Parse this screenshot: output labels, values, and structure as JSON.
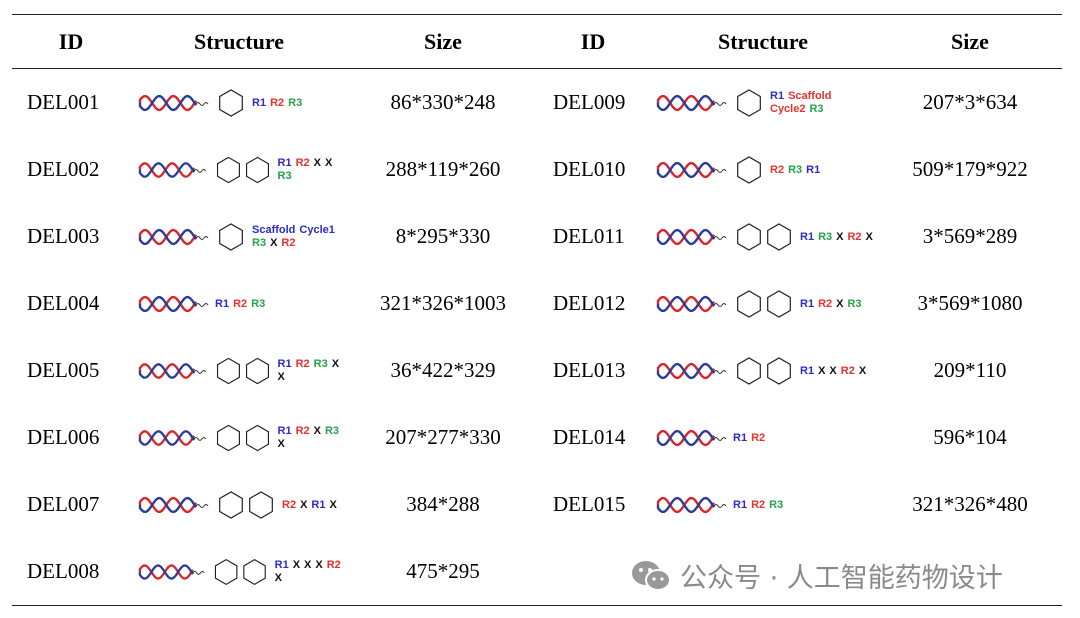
{
  "table": {
    "headers": [
      "ID",
      "Structure",
      "Size",
      "ID",
      "Structure",
      "Size"
    ],
    "rows": [
      [
        "DEL001",
        [
          {
            "t": "R1",
            "c": "#2b2bc8"
          },
          {
            "t": "R2",
            "c": "#e8312d"
          },
          {
            "t": "R3",
            "c": "#25a24a"
          }
        ],
        "86*330*248",
        "DEL009",
        [
          {
            "t": "R1",
            "c": "#2b2bc8"
          },
          {
            "t": "Scaffold",
            "c": "#e8312d"
          },
          {
            "t": "Cycle2",
            "c": "#e8312d"
          },
          {
            "t": "R3",
            "c": "#25a24a"
          }
        ],
        "207*3*634"
      ],
      [
        "DEL002",
        [
          {
            "t": "R1",
            "c": "#2b2bc8"
          },
          {
            "t": "R2",
            "c": "#e8312d"
          },
          {
            "t": "X",
            "c": "#111"
          },
          {
            "t": "X",
            "c": "#111"
          },
          {
            "t": "R3",
            "c": "#25a24a"
          }
        ],
        "288*119*260",
        "DEL010",
        [
          {
            "t": "R2",
            "c": "#e8312d"
          },
          {
            "t": "R3",
            "c": "#25a24a"
          },
          {
            "t": "R1",
            "c": "#2b2bc8"
          }
        ],
        "509*179*922"
      ],
      [
        "DEL003",
        [
          {
            "t": "Scaffold",
            "c": "#2b2bc8"
          },
          {
            "t": "Cycle1",
            "c": "#2b2bc8"
          },
          {
            "t": "R3",
            "c": "#25a24a"
          },
          {
            "t": "X",
            "c": "#111"
          },
          {
            "t": "R2",
            "c": "#e8312d"
          }
        ],
        "8*295*330",
        "DEL011",
        [
          {
            "t": "R1",
            "c": "#2b2bc8"
          },
          {
            "t": "R3",
            "c": "#25a24a"
          },
          {
            "t": "X",
            "c": "#111"
          },
          {
            "t": "R2",
            "c": "#e8312d"
          },
          {
            "t": "X",
            "c": "#111"
          }
        ],
        "3*569*289"
      ],
      [
        "DEL004",
        [
          {
            "t": "R1",
            "c": "#2b2bc8"
          },
          {
            "t": "R2",
            "c": "#e8312d"
          },
          {
            "t": "R3",
            "c": "#25a24a"
          }
        ],
        "321*326*1003",
        "DEL012",
        [
          {
            "t": "R1",
            "c": "#2b2bc8"
          },
          {
            "t": "R2",
            "c": "#e8312d"
          },
          {
            "t": "X",
            "c": "#111"
          },
          {
            "t": "R3",
            "c": "#25a24a"
          }
        ],
        "3*569*1080"
      ],
      [
        "DEL005",
        [
          {
            "t": "R1",
            "c": "#2b2bc8"
          },
          {
            "t": "R2",
            "c": "#e8312d"
          },
          {
            "t": "R3",
            "c": "#25a24a"
          },
          {
            "t": "X",
            "c": "#111"
          },
          {
            "t": "X",
            "c": "#111"
          }
        ],
        "36*422*329",
        "DEL013",
        [
          {
            "t": "R1",
            "c": "#2b2bc8"
          },
          {
            "t": "X",
            "c": "#111"
          },
          {
            "t": "X",
            "c": "#111"
          },
          {
            "t": "R2",
            "c": "#e8312d"
          },
          {
            "t": "X",
            "c": "#111"
          }
        ],
        "209*110"
      ],
      [
        "DEL006",
        [
          {
            "t": "R1",
            "c": "#2b2bc8"
          },
          {
            "t": "R2",
            "c": "#e8312d"
          },
          {
            "t": "X",
            "c": "#111"
          },
          {
            "t": "R3",
            "c": "#25a24a"
          },
          {
            "t": "X",
            "c": "#111"
          }
        ],
        "207*277*330",
        "DEL014",
        [
          {
            "t": "R1",
            "c": "#2b2bc8"
          },
          {
            "t": "R2",
            "c": "#e8312d"
          }
        ],
        "596*104"
      ],
      [
        "DEL007",
        [
          {
            "t": "R2",
            "c": "#e8312d"
          },
          {
            "t": "X",
            "c": "#111"
          },
          {
            "t": "R1",
            "c": "#2b2bc8"
          },
          {
            "t": "X",
            "c": "#111"
          }
        ],
        "384*288",
        "DEL015",
        [
          {
            "t": "R1",
            "c": "#2b2bc8"
          },
          {
            "t": "R2",
            "c": "#e8312d"
          },
          {
            "t": "R3",
            "c": "#25a24a"
          }
        ],
        "321*326*480"
      ],
      [
        "DEL008",
        [
          {
            "t": "R1",
            "c": "#2b2bc8"
          },
          {
            "t": "X",
            "c": "#111"
          },
          {
            "t": "X",
            "c": "#111"
          },
          {
            "t": "X",
            "c": "#111"
          },
          {
            "t": "R2",
            "c": "#e8312d"
          },
          {
            "t": "X",
            "c": "#111"
          }
        ],
        "475*295"
      ]
    ]
  },
  "watermark": "公众号 · 人工智能药物设计"
}
